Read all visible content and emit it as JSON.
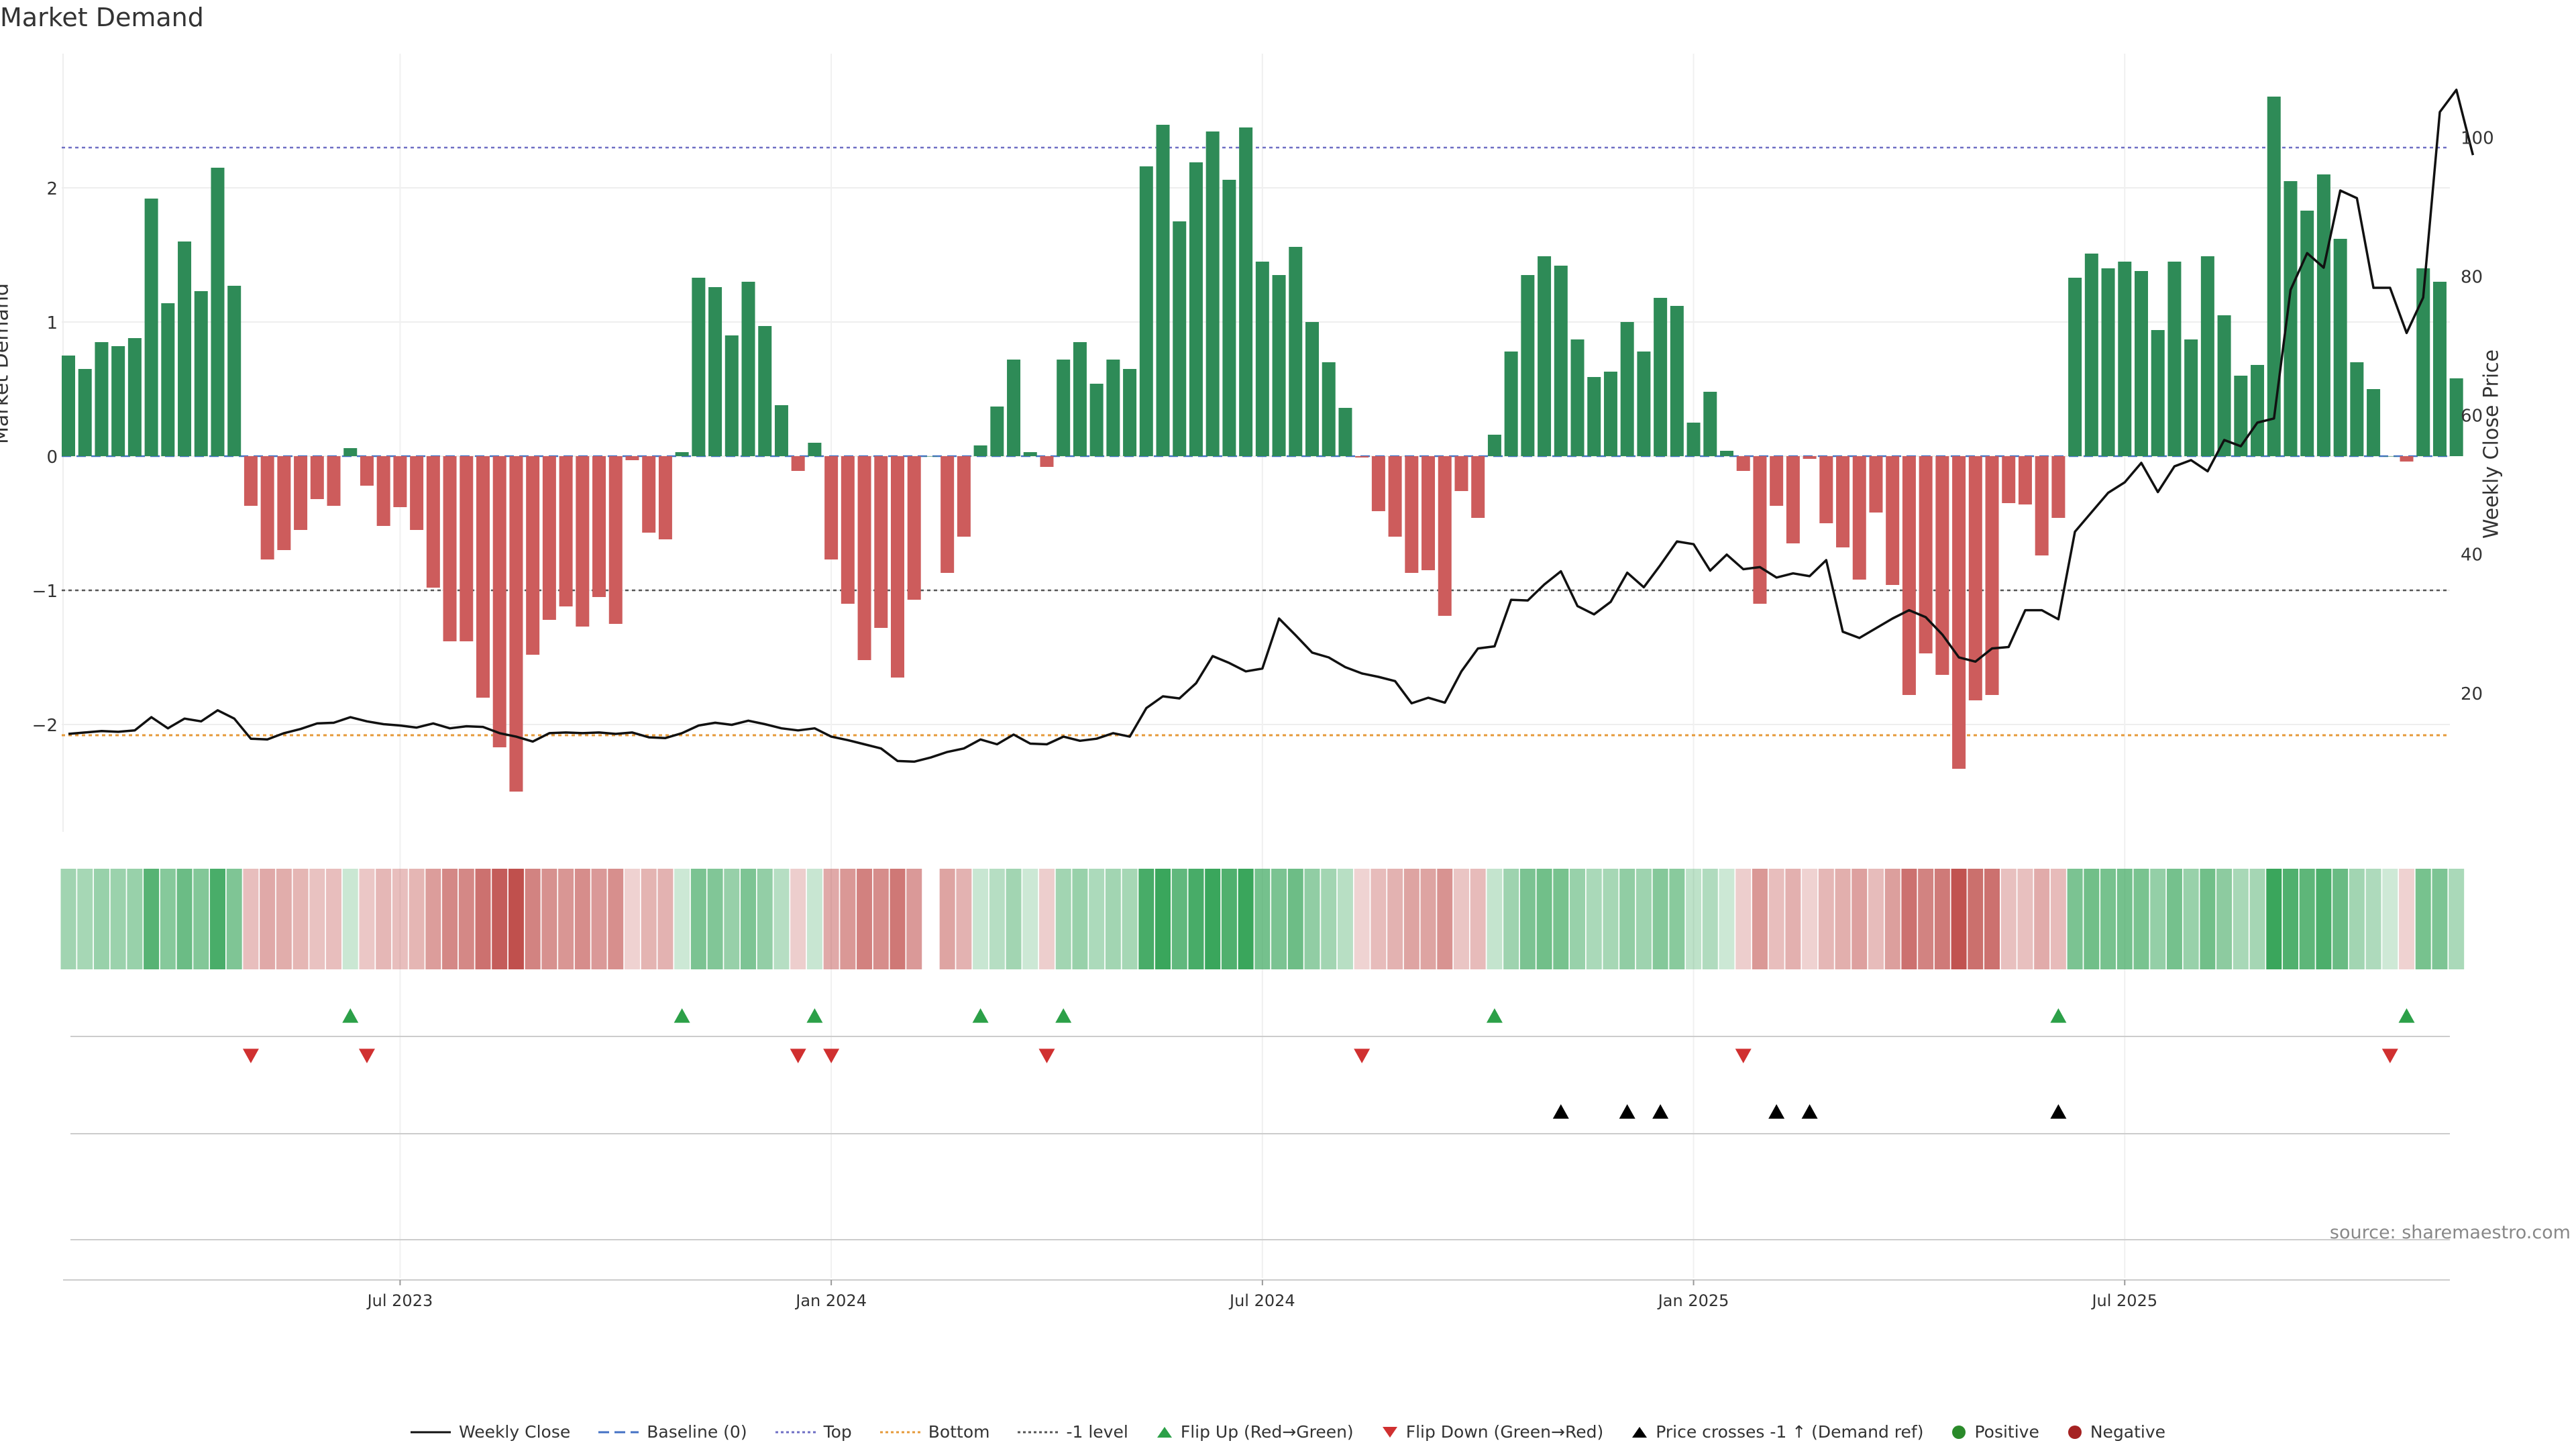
{
  "page": {
    "title": "Market Demand",
    "source": "source: sharemaestro.com"
  },
  "axes": {
    "left_label": "Market Demand",
    "right_label": "Weekly Close Price",
    "left_range": [
      -2.8,
      3.0
    ],
    "right_range": [
      0,
      112
    ],
    "left_ticks": [
      {
        "v": 2,
        "label": "2"
      },
      {
        "v": 1,
        "label": "1"
      },
      {
        "v": 0,
        "label": "0"
      },
      {
        "v": -1,
        "label": "−1"
      },
      {
        "v": -2,
        "label": "−2"
      }
    ],
    "right_ticks": [
      {
        "v": 100,
        "label": "100"
      },
      {
        "v": 80,
        "label": "80"
      },
      {
        "v": 60,
        "label": "60"
      },
      {
        "v": 40,
        "label": "40"
      },
      {
        "v": 20,
        "label": "20"
      }
    ],
    "x_ticks": [
      {
        "i": 20,
        "label": "Jul 2023"
      },
      {
        "i": 46,
        "label": "Jan 2024"
      },
      {
        "i": 72,
        "label": "Jul 2024"
      },
      {
        "i": 98,
        "label": "Jan 2025"
      },
      {
        "i": 124,
        "label": "Jul 2025"
      }
    ]
  },
  "levels": {
    "top": 2.3,
    "bottom": -2.08,
    "minus_one": -1,
    "baseline": 0
  },
  "chart_data": {
    "type": "bar",
    "title": "Market Demand",
    "xlabel": "",
    "ylabel": "Market Demand",
    "y2label": "Weekly Close Price",
    "ylim": [
      -2.8,
      3.0
    ],
    "y2lim": [
      0,
      112
    ],
    "x_unit": "week index (0 = first week shown)",
    "series": [
      {
        "name": "Market Demand",
        "values": [
          0.75,
          0.65,
          0.85,
          0.82,
          0.88,
          1.92,
          1.14,
          1.6,
          1.23,
          2.15,
          1.27,
          -0.37,
          -0.77,
          -0.7,
          -0.55,
          -0.32,
          -0.37,
          0.06,
          -0.22,
          -0.52,
          -0.38,
          -0.55,
          -0.98,
          -1.38,
          -1.38,
          -1.8,
          -2.17,
          -2.5,
          -1.48,
          -1.22,
          -1.12,
          -1.27,
          -1.05,
          -1.25,
          -0.03,
          -0.57,
          -0.62,
          0.03,
          1.33,
          1.26,
          0.9,
          1.3,
          0.97,
          0.38,
          -0.11,
          0.1,
          -0.77,
          -1.1,
          -1.52,
          -1.28,
          -1.65,
          -1.07,
          0,
          -0.87,
          -0.6,
          0.08,
          0.37,
          0.72,
          0.03,
          -0.08,
          0.72,
          0.85,
          0.54,
          0.72,
          0.65,
          2.16,
          2.47,
          1.75,
          2.19,
          2.42,
          2.06,
          2.45,
          1.45,
          1.35,
          1.56,
          1.0,
          0.7,
          0.36,
          -0.01,
          -0.41,
          -0.6,
          -0.87,
          -0.85,
          -1.19,
          -0.26,
          -0.46,
          0.16,
          0.78,
          1.35,
          1.49,
          1.42,
          0.87,
          0.59,
          0.63,
          1.0,
          0.78,
          1.18,
          1.12,
          0.25,
          0.48,
          0.04,
          -0.11,
          -1.1,
          -0.37,
          -0.65,
          -0.02,
          -0.5,
          -0.68,
          -0.92,
          -0.42,
          -0.96,
          -1.78,
          -1.47,
          -1.63,
          -2.33,
          -1.82,
          -1.78,
          -0.35,
          -0.36,
          -0.74,
          -0.46,
          1.33,
          1.51,
          1.4,
          1.45,
          1.38,
          0.94,
          1.45,
          0.87,
          1.49,
          1.05,
          0.6,
          0.68,
          2.68,
          2.05,
          1.83,
          2.1,
          1.62,
          0.7,
          0.5,
          0,
          -0.04,
          1.4,
          1.3,
          0.58
        ]
      },
      {
        "name": "Weekly Close",
        "values": [
          14.1,
          14.3,
          14.5,
          14.4,
          14.6,
          16.5,
          14.9,
          16.3,
          15.9,
          17.5,
          16.3,
          13.4,
          13.3,
          14.2,
          14.8,
          15.6,
          15.7,
          16.5,
          15.9,
          15.5,
          15.3,
          15.0,
          15.6,
          14.9,
          15.2,
          15.1,
          14.2,
          13.7,
          13.0,
          14.2,
          14.3,
          14.2,
          14.3,
          14.1,
          14.3,
          13.6,
          13.5,
          14.2,
          15.3,
          15.7,
          15.4,
          16.0,
          15.5,
          14.9,
          14.6,
          14.9,
          13.7,
          13.2,
          12.6,
          12.0,
          10.2,
          10.1,
          10.7,
          11.5,
          12.0,
          13.3,
          12.6,
          14.0,
          12.7,
          12.6,
          13.7,
          13.1,
          13.4,
          14.2,
          13.7,
          17.8,
          19.5,
          19.2,
          21.4,
          25.3,
          24.3,
          23.1,
          23.5,
          30.7,
          28.3,
          25.8,
          25.1,
          23.7,
          22.8,
          22.3,
          21.7,
          18.5,
          19.3,
          18.6,
          23.1,
          26.4,
          26.7,
          33.4,
          33.3,
          35.6,
          37.5,
          32.5,
          31.3,
          33.1,
          37.3,
          35.2,
          38.4,
          41.8,
          41.4,
          37.6,
          39.9,
          37.8,
          38.1,
          36.6,
          37.2,
          36.8,
          39.1,
          28.8,
          27.9,
          29.3,
          30.7,
          31.9,
          30.9,
          28.4,
          25.1,
          24.5,
          26.4,
          26.6,
          31.9,
          31.9,
          30.6,
          43.2,
          46.0,
          48.8,
          50.3,
          53.1,
          48.9,
          52.6,
          53.5,
          51.9,
          56.4,
          55.5,
          58.9,
          59.5,
          78.0,
          83.3,
          81.2,
          92.3,
          91.2,
          78.3,
          78.3,
          71.8,
          76.9,
          103.6,
          106.8,
          97.4
        ]
      }
    ],
    "flip_up_weeks": [
      17,
      37,
      45,
      55,
      60,
      86,
      120,
      141
    ],
    "flip_down_weeks": [
      11,
      18,
      44,
      46,
      59,
      78,
      101,
      140
    ],
    "price_cross_weeks": [
      90,
      94,
      96,
      103,
      105,
      120
    ],
    "heat_missing_weeks": [
      52
    ]
  },
  "legend": [
    {
      "key": "weekly_close",
      "label": "Weekly Close",
      "color": "#111111"
    },
    {
      "key": "baseline",
      "label": "Baseline (0)",
      "color": "#4472c4"
    },
    {
      "key": "top",
      "label": "Top",
      "color": "#6f6fc4"
    },
    {
      "key": "bottom",
      "label": "Bottom",
      "color": "#e69a3a"
    },
    {
      "key": "minus_one",
      "label": "-1 level",
      "color": "#555555"
    },
    {
      "key": "flip_up",
      "label": "Flip Up (Red→Green)",
      "color": "#2ca048"
    },
    {
      "key": "flip_down",
      "label": "Flip Down (Green→Red)",
      "color": "#d03030"
    },
    {
      "key": "price_cross",
      "label": "Price crosses -1 ↑ (Demand ref)",
      "color": "#000000"
    },
    {
      "key": "positive",
      "label": "Positive",
      "color": "#2e8b57"
    },
    {
      "key": "negative",
      "label": "Negative",
      "color": "#b22222"
    }
  ],
  "colors": {
    "positive_bar": "#2e8b57",
    "negative_bar": "#cd5c5c",
    "heat_pos": "#3aa65c",
    "heat_neg": "#c0504d",
    "price_line": "#111111"
  }
}
